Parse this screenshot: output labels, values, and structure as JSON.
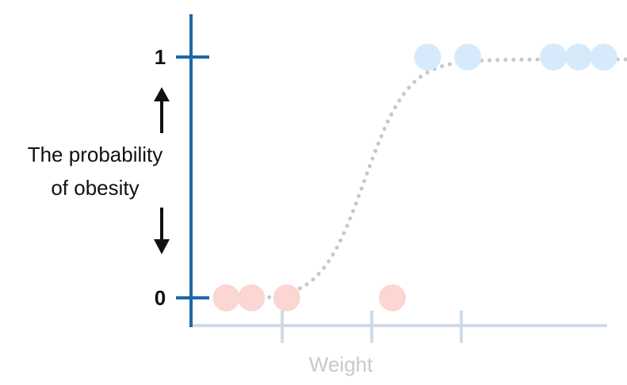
{
  "chart_data": {
    "type": "scatter",
    "title": "",
    "xlabel": "Weight",
    "ylabel_lines": [
      "The probability",
      "of obesity"
    ],
    "yticks": [
      {
        "value": 0,
        "label": "0"
      },
      {
        "value": 1,
        "label": "1"
      }
    ],
    "xticks_count": 3,
    "ylim": [
      0,
      1
    ],
    "grid": false,
    "legend": "none",
    "series": [
      {
        "color": "#d6eafb",
        "points": [
          {
            "x": 4.7,
            "y": 1
          },
          {
            "x": 5.5,
            "y": 1
          },
          {
            "x": 7.2,
            "y": 1
          },
          {
            "x": 7.7,
            "y": 1
          },
          {
            "x": 8.2,
            "y": 1
          }
        ]
      },
      {
        "color": "#fbd6d2",
        "points": [
          {
            "x": 0.7,
            "y": 0
          },
          {
            "x": 1.2,
            "y": 0
          },
          {
            "x": 1.9,
            "y": 0
          },
          {
            "x": 4.0,
            "y": 0
          }
        ]
      }
    ],
    "curve": {
      "type": "logistic",
      "style": "dotted",
      "color": "#c8c8c8",
      "midpoint_x": 3.45,
      "steepness": 2.3,
      "x_range": [
        0.6,
        8.85
      ]
    },
    "colors": {
      "y_axis": "#1f67a6",
      "x_axis": "#cddcea",
      "arrow": "#111111"
    }
  }
}
